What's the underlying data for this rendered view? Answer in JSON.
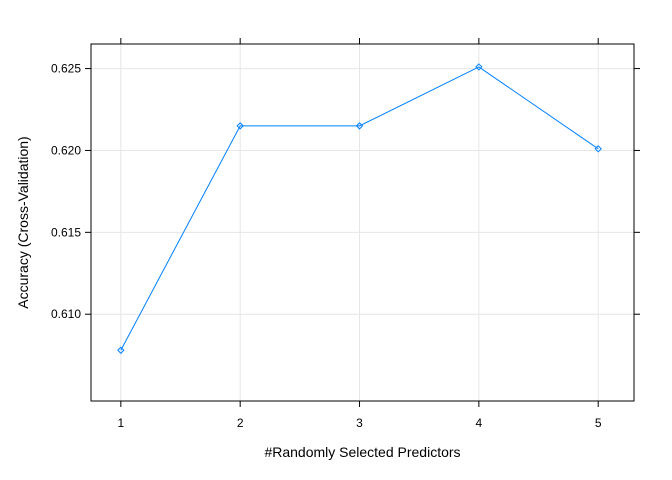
{
  "chart_data": {
    "type": "line",
    "title": "",
    "xlabel": "#Randomly Selected Predictors",
    "ylabel": "Accuracy (Cross-Validation)",
    "x": [
      1,
      2,
      3,
      4,
      5
    ],
    "series": [
      {
        "values": [
          0.6078,
          0.6215,
          0.6215,
          0.6251,
          0.6201
        ],
        "color": "#0080ff",
        "marker": "diamond"
      }
    ],
    "xlim": [
      0.75,
      5.3
    ],
    "ylim": [
      0.6047,
      0.6265
    ],
    "x_ticks": [
      1,
      2,
      3,
      4,
      5
    ],
    "x_tick_labels": [
      "1",
      "2",
      "3",
      "4",
      "5"
    ],
    "y_ticks": [
      0.61,
      0.615,
      0.62,
      0.625
    ],
    "y_tick_labels": [
      "0.610",
      "0.615",
      "0.620",
      "0.625"
    ],
    "grid": true,
    "grid_color": "#e6e6e6",
    "legend": "none"
  }
}
